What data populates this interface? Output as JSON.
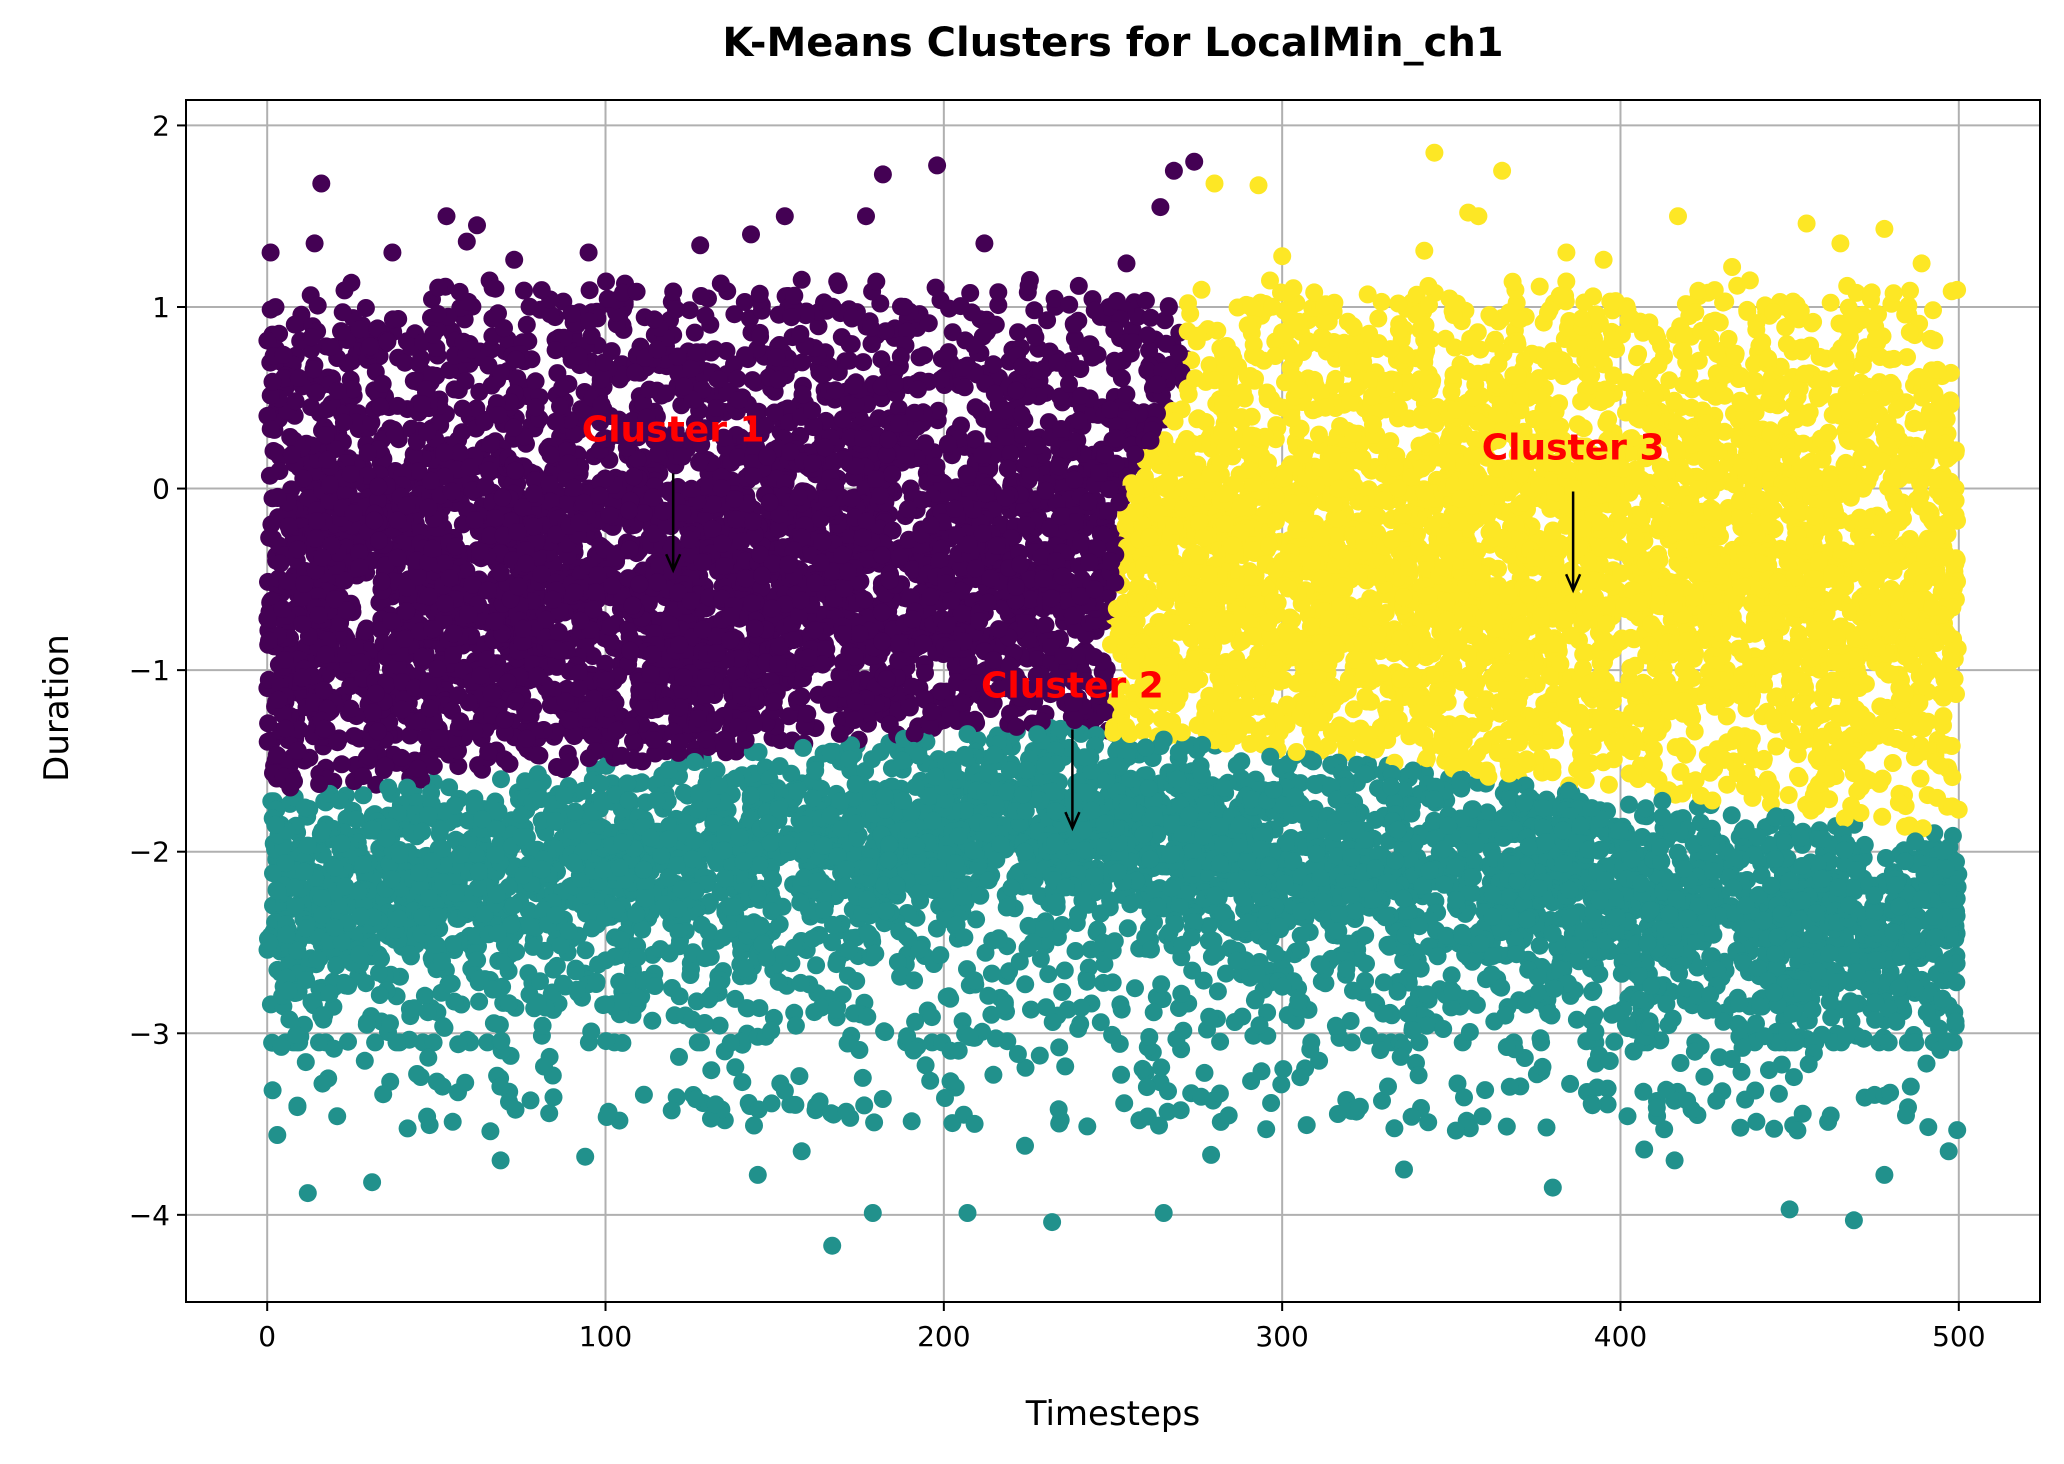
{
  "chart_data": {
    "type": "scatter",
    "title": "K-Means Clusters for LocalMin_ch1",
    "xlabel": "Timesteps",
    "ylabel": "Duration",
    "xlim": [
      -24,
      524
    ],
    "ylim": [
      -4.48,
      2.14
    ],
    "xticks": [
      0,
      100,
      200,
      300,
      400,
      500
    ],
    "xtick_labels": [
      "0",
      "100",
      "200",
      "300",
      "400",
      "500"
    ],
    "yticks": [
      2,
      1,
      0,
      -1,
      -2,
      -3,
      -4
    ],
    "ytick_labels": [
      "2",
      "1",
      "0",
      "−1",
      "−2",
      "−3",
      "−4"
    ],
    "grid": true,
    "legend": null,
    "colors": {
      "cluster_1": "#440154",
      "cluster_2": "#21918c",
      "cluster_3": "#fde725",
      "annotation": "#ff0000"
    },
    "clusters": [
      {
        "label": "Cluster 1",
        "color": "#440154",
        "x_range": [
          0,
          275
        ],
        "y_core": [
          -1.6,
          0.7
        ],
        "outliers": [
          [
            16,
            1.68
          ],
          [
            53,
            1.5
          ],
          [
            62,
            1.45
          ],
          [
            95,
            1.3
          ],
          [
            128,
            1.34
          ],
          [
            153,
            1.5
          ],
          [
            177,
            1.5
          ],
          [
            182,
            1.73
          ],
          [
            198,
            1.78
          ],
          [
            274,
            1.8
          ],
          [
            268,
            1.75
          ],
          [
            264,
            1.55
          ],
          [
            1,
            1.3
          ],
          [
            14,
            1.35
          ],
          [
            37,
            1.3
          ],
          [
            59,
            1.36
          ],
          [
            73,
            1.26
          ],
          [
            143,
            1.4
          ],
          [
            158,
            1.15
          ],
          [
            212,
            1.35
          ],
          [
            254,
            1.24
          ]
        ]
      },
      {
        "label": "Cluster 2",
        "color": "#21918c",
        "x_range": [
          0,
          500
        ],
        "y_core": [
          -2.9,
          -1.5
        ],
        "outliers": [
          [
            167,
            -4.17
          ],
          [
            232,
            -4.04
          ],
          [
            207,
            -3.99
          ],
          [
            179,
            -3.99
          ],
          [
            265,
            -3.99
          ],
          [
            12,
            -3.88
          ],
          [
            380,
            -3.85
          ],
          [
            469,
            -4.03
          ],
          [
            450,
            -3.97
          ],
          [
            31,
            -3.82
          ],
          [
            145,
            -3.78
          ],
          [
            336,
            -3.75
          ],
          [
            3,
            -3.56
          ],
          [
            69,
            -3.7
          ],
          [
            94,
            -3.68
          ],
          [
            158,
            -3.65
          ],
          [
            224,
            -3.62
          ],
          [
            279,
            -3.67
          ],
          [
            407,
            -3.64
          ],
          [
            416,
            -3.7
          ],
          [
            497,
            -3.65
          ],
          [
            478,
            -3.78
          ]
        ]
      },
      {
        "label": "Cluster 3",
        "color": "#fde725",
        "x_range": [
          248,
          500
        ],
        "y_core": [
          -1.9,
          0.9
        ],
        "outliers": [
          [
            345,
            1.85
          ],
          [
            365,
            1.75
          ],
          [
            280,
            1.68
          ],
          [
            293,
            1.67
          ],
          [
            417,
            1.5
          ],
          [
            455,
            1.46
          ],
          [
            355,
            1.52
          ],
          [
            478,
            1.43
          ],
          [
            358,
            1.5
          ],
          [
            384,
            1.3
          ],
          [
            300,
            1.28
          ],
          [
            395,
            1.26
          ],
          [
            342,
            1.31
          ],
          [
            433,
            1.22
          ],
          [
            489,
            1.24
          ],
          [
            465,
            1.35
          ]
        ]
      }
    ],
    "annotations": [
      {
        "text": "Cluster 1",
        "text_xy": [
          120,
          0.26
        ],
        "arrow_to": [
          120,
          -0.45
        ]
      },
      {
        "text": "Cluster 2",
        "text_xy": [
          238,
          -1.15
        ],
        "arrow_to": [
          238,
          -1.87
        ]
      },
      {
        "text": "Cluster 3",
        "text_xy": [
          386,
          0.16
        ],
        "arrow_to": [
          386,
          -0.56
        ]
      }
    ]
  }
}
